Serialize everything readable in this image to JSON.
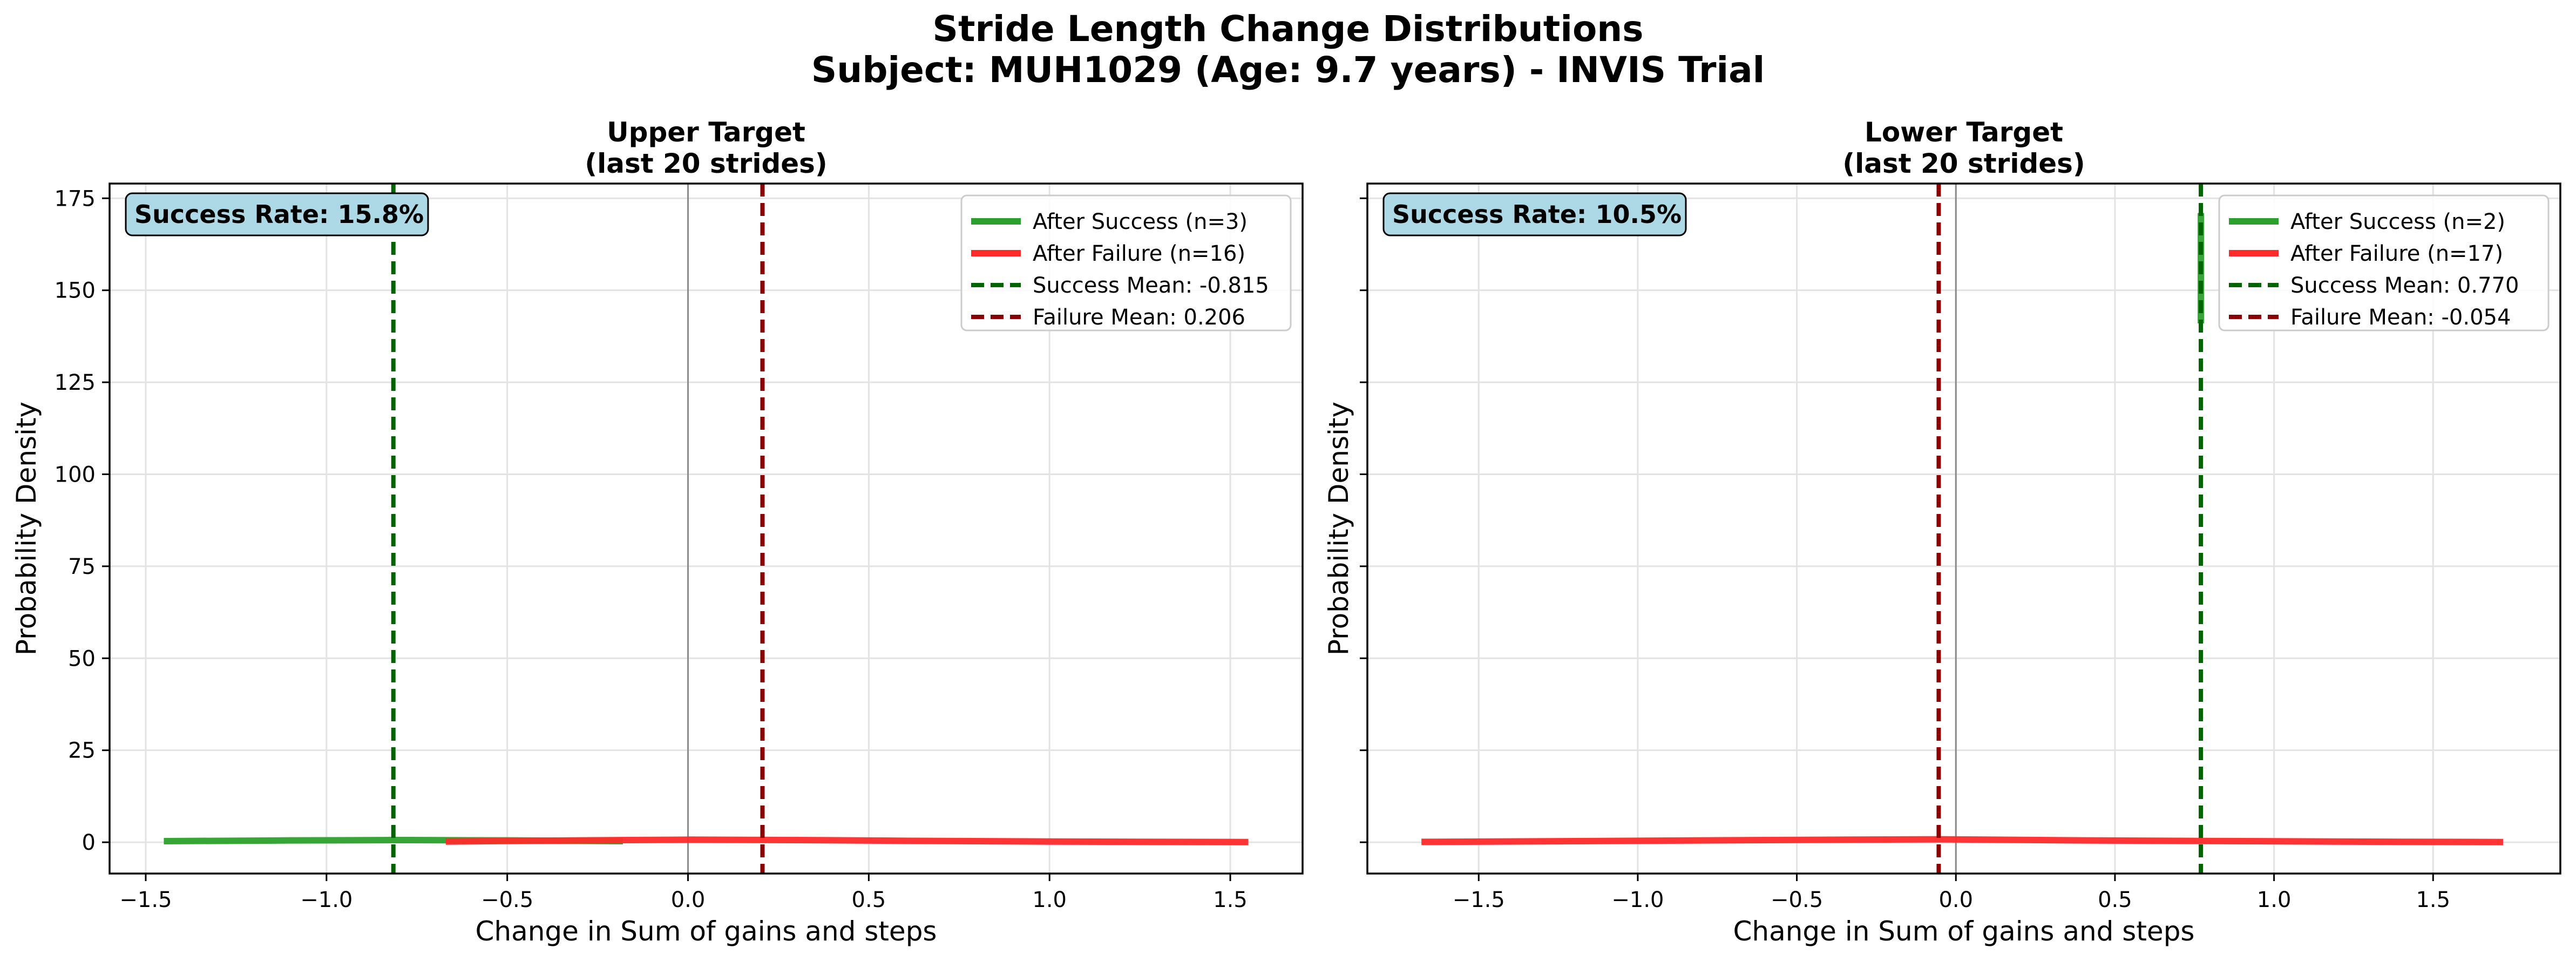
{
  "figure": {
    "title_line1": "Stride Length Change Distributions",
    "title_line2": "Subject: MUH1029 (Age: 9.7 years) - INVIS Trial"
  },
  "chart_data": [
    {
      "type": "line",
      "title_line1": "Upper Target",
      "title_line2": "(last 20 strides)",
      "xlabel": "Change in Sum of gains and steps",
      "ylabel": "Probability Density",
      "xlim": [
        -1.6,
        1.7
      ],
      "ylim": [
        -8.5,
        179
      ],
      "xticks": [
        -1.5,
        -1.0,
        -0.5,
        0.0,
        0.5,
        1.0,
        1.5
      ],
      "xtick_labels": [
        "−1.5",
        "−1.0",
        "−0.5",
        "0.0",
        "0.5",
        "1.0",
        "1.5"
      ],
      "yticks": [
        0,
        25,
        50,
        75,
        100,
        125,
        150,
        175
      ],
      "ytick_labels": [
        "0",
        "25",
        "50",
        "75",
        "100",
        "125",
        "150",
        "175"
      ],
      "show_yticklabels": true,
      "grid": true,
      "legend_position": "top-right",
      "annotation": "Success Rate: 15.8%",
      "zero_line": 0.0,
      "series": [
        {
          "name": "After Success (n=3)",
          "color": "#2ca02c",
          "x": [
            -1.45,
            -1.1,
            -0.8,
            -0.5,
            -0.18
          ],
          "y": [
            0.3,
            0.5,
            0.6,
            0.5,
            0.3
          ]
        },
        {
          "name": "After Failure (n=16)",
          "color": "#ff2a2a",
          "x": [
            -0.67,
            -0.3,
            0.0,
            0.3,
            0.6,
            1.0,
            1.3,
            1.55
          ],
          "y": [
            0.2,
            0.5,
            0.7,
            0.6,
            0.4,
            0.2,
            0.1,
            0.05
          ]
        }
      ],
      "mean_lines": [
        {
          "name": "Success Mean: -0.815",
          "value": -0.815,
          "color": "#006400"
        },
        {
          "name": "Failure Mean: 0.206",
          "value": 0.206,
          "color": "#8b0000"
        }
      ]
    },
    {
      "type": "line",
      "title_line1": "Lower Target",
      "title_line2": "(last 20 strides)",
      "xlabel": "Change in Sum of gains and steps",
      "ylabel": "Probability Density",
      "xlim": [
        -1.85,
        1.9
      ],
      "ylim": [
        -8.5,
        179
      ],
      "xticks": [
        -1.5,
        -1.0,
        -0.5,
        0.0,
        0.5,
        1.0,
        1.5
      ],
      "xtick_labels": [
        "−1.5",
        "−1.0",
        "−0.5",
        "0.0",
        "0.5",
        "1.0",
        "1.5"
      ],
      "yticks": [
        0,
        25,
        50,
        75,
        100,
        125,
        150,
        175
      ],
      "ytick_labels": [
        "0",
        "25",
        "50",
        "75",
        "100",
        "125",
        "150",
        "175"
      ],
      "show_yticklabels": false,
      "grid": true,
      "legend_position": "top-right",
      "annotation": "Success Rate: 10.5%",
      "zero_line": 0.0,
      "series": [
        {
          "name": "After Success (n=2)",
          "color": "#2ca02c",
          "x": [
            0.77,
            0.77
          ],
          "y": [
            141,
            171
          ]
        },
        {
          "name": "After Failure (n=17)",
          "color": "#ff2a2a",
          "x": [
            -1.68,
            -1.2,
            -0.6,
            -0.05,
            0.4,
            0.9,
            1.3,
            1.72
          ],
          "y": [
            0.1,
            0.3,
            0.6,
            0.8,
            0.5,
            0.3,
            0.15,
            0.05
          ]
        }
      ],
      "mean_lines": [
        {
          "name": "Success Mean: 0.770",
          "value": 0.77,
          "color": "#006400"
        },
        {
          "name": "Failure Mean: -0.054",
          "value": -0.054,
          "color": "#8b0000"
        }
      ]
    }
  ]
}
